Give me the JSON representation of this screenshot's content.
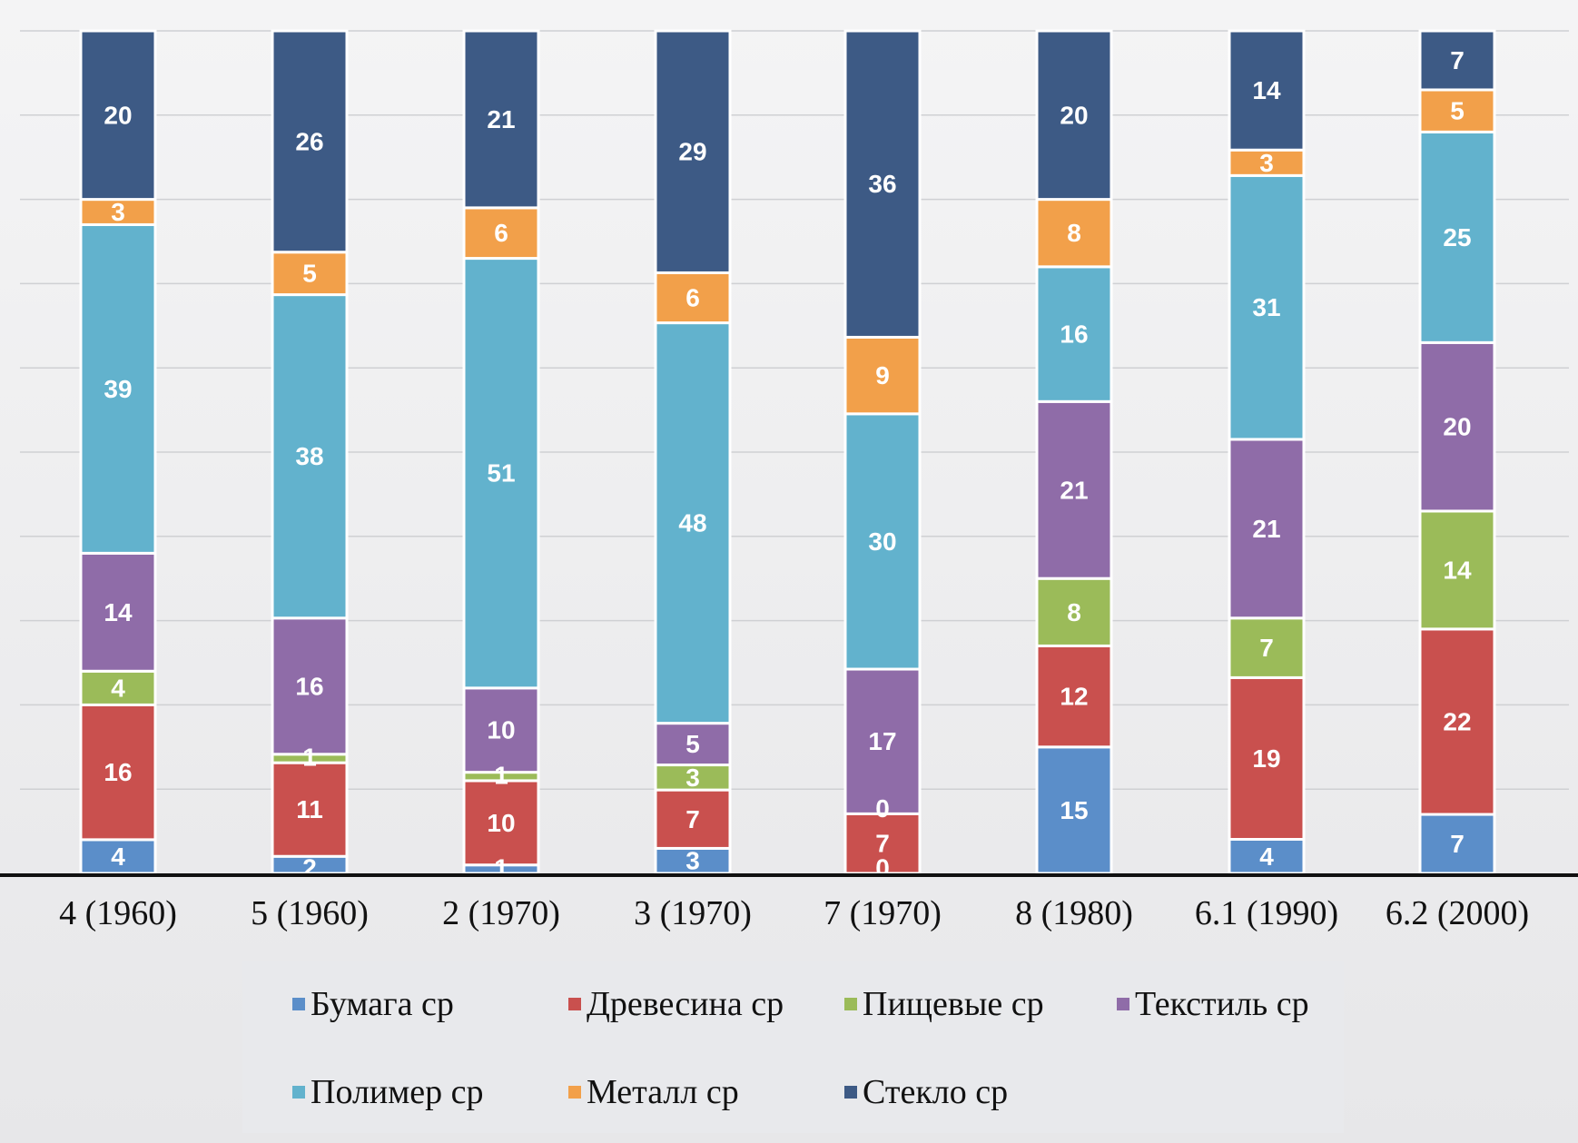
{
  "chart_data": {
    "type": "bar",
    "stacked": true,
    "title": "",
    "xlabel": "",
    "ylabel": "",
    "ylim": [
      0,
      100
    ],
    "grid": true,
    "legend_position": "bottom",
    "categories": [
      "4 (1960)",
      "5 (1960)",
      "2 (1970)",
      "3 (1970)",
      "7 (1970)",
      "8 (1980)",
      "6.1 (1990)",
      "6.2 (2000)"
    ],
    "series": [
      {
        "name": "Бумага ср",
        "color": "#5b8ec9",
        "values": [
          4,
          2,
          1,
          3,
          0,
          15,
          4,
          7
        ]
      },
      {
        "name": "Древесина ср",
        "color": "#c9504e",
        "values": [
          16,
          11,
          10,
          7,
          7,
          12,
          19,
          22
        ]
      },
      {
        "name": "Пищевые ср",
        "color": "#9bbb59",
        "values": [
          4,
          1,
          1,
          3,
          0,
          8,
          7,
          14
        ]
      },
      {
        "name": "Текстиль ср",
        "color": "#8f6ca8",
        "values": [
          14,
          16,
          10,
          5,
          17,
          21,
          21,
          20
        ]
      },
      {
        "name": "Полимер ср",
        "color": "#62b2cd",
        "values": [
          39,
          38,
          51,
          48,
          30,
          16,
          31,
          25
        ]
      },
      {
        "name": "Металл ср",
        "color": "#f2a04a",
        "values": [
          3,
          5,
          6,
          6,
          9,
          8,
          3,
          5
        ]
      },
      {
        "name": "Стекло ср",
        "color": "#3d5a85",
        "values": [
          20,
          26,
          21,
          29,
          36,
          20,
          14,
          7
        ]
      }
    ],
    "data_labels": [
      [
        "4",
        "2",
        "1",
        "3",
        "0",
        "15",
        "4",
        "7"
      ],
      [
        "16",
        "11",
        "10",
        "7",
        "7",
        "12",
        "19",
        "22"
      ],
      [
        "4",
        "1",
        "1",
        "3",
        "0",
        "8",
        "7",
        "14"
      ],
      [
        "14",
        "16",
        "10",
        "5",
        "17",
        "21",
        "21",
        "20"
      ],
      [
        "39",
        "38",
        "51",
        "48",
        "30",
        "16",
        "31",
        "25"
      ],
      [
        "3",
        "5",
        "6",
        "6",
        "9",
        "8",
        "3",
        "5"
      ],
      [
        "20",
        "26",
        "21",
        "29",
        "36",
        "20",
        "14",
        "7"
      ]
    ]
  }
}
